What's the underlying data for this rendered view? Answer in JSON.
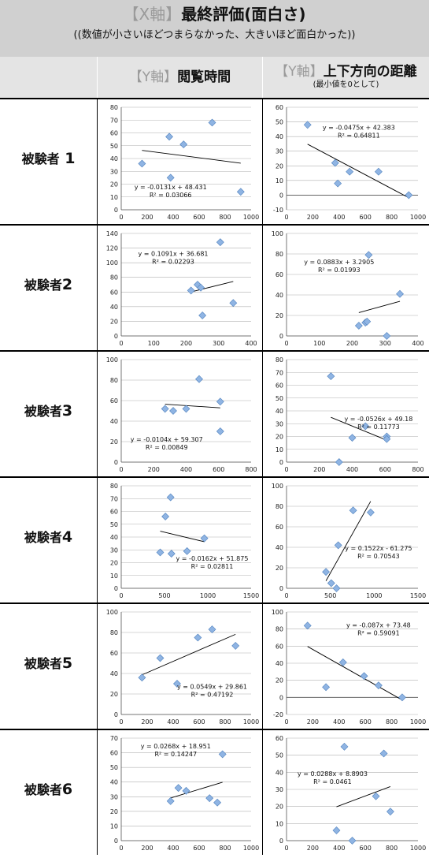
{
  "header": {
    "title_bracket": "【X軸】",
    "title_main": "最終評価(面白さ)",
    "subtitle": "((数値が小さいほどつまらなかった、大きいほど面白かった))"
  },
  "columns": [
    {
      "bracket": "【Y軸】",
      "main": "閲覧時間",
      "sub": ""
    },
    {
      "bracket": "【Y軸】",
      "main": "上下方向の距離",
      "sub": "(最小値を0として)"
    }
  ],
  "rows": [
    {
      "label_prefix": "被験者",
      "label_num": "1"
    },
    {
      "label_prefix": "被験者",
      "label_num": "2"
    },
    {
      "label_prefix": "被験者",
      "label_num": "3"
    },
    {
      "label_prefix": "被験者",
      "label_num": "4"
    },
    {
      "label_prefix": "被験者",
      "label_num": "5"
    },
    {
      "label_prefix": "被験者",
      "label_num": "6"
    }
  ],
  "colors": {
    "marker": "#8fb4e3",
    "marker_stroke": "#4f81bd",
    "grid": "#b0b0b0",
    "trend": "#000000"
  },
  "chart_data": [
    {
      "type": "scatter",
      "subject": "被験者 1",
      "panel": "閲覧時間",
      "xlim": [
        0,
        1000
      ],
      "ylim": [
        0,
        80
      ],
      "xticks": [
        0,
        200,
        400,
        600,
        800,
        1000
      ],
      "yticks": [
        0,
        10,
        20,
        30,
        40,
        50,
        60,
        70,
        80
      ],
      "points": [
        [
          160,
          36
        ],
        [
          370,
          57
        ],
        [
          380,
          25
        ],
        [
          480,
          51
        ],
        [
          700,
          68
        ],
        [
          920,
          14
        ]
      ],
      "trendline": {
        "slope": -0.0131,
        "intercept": 48.431
      },
      "equation": "y = -0.0131x + 48.431",
      "r2": "R² = 0.03066"
    },
    {
      "type": "scatter",
      "subject": "被験者 1",
      "panel": "上下方向の距離",
      "xlim": [
        0,
        1000
      ],
      "ylim": [
        -10,
        60
      ],
      "xticks": [
        0,
        200,
        400,
        600,
        800,
        1000
      ],
      "yticks": [
        -10,
        0,
        10,
        20,
        30,
        40,
        50,
        60
      ],
      "points": [
        [
          160,
          48
        ],
        [
          370,
          22
        ],
        [
          390,
          8
        ],
        [
          480,
          16
        ],
        [
          700,
          16
        ],
        [
          930,
          0
        ]
      ],
      "trendline": {
        "slope": -0.0475,
        "intercept": 42.383
      },
      "equation": "y = -0.0475x + 42.383",
      "r2": "R² = 0.64811"
    },
    {
      "type": "scatter",
      "subject": "被験者2",
      "panel": "閲覧時間",
      "xlim": [
        0,
        400
      ],
      "ylim": [
        0,
        140
      ],
      "xticks": [
        0,
        100,
        200,
        300,
        400
      ],
      "yticks": [
        0,
        20,
        40,
        60,
        80,
        100,
        120,
        140
      ],
      "points": [
        [
          215,
          62
        ],
        [
          235,
          70
        ],
        [
          245,
          66
        ],
        [
          250,
          28
        ],
        [
          305,
          128
        ],
        [
          345,
          45
        ]
      ],
      "trendline": {
        "slope": 0.1091,
        "intercept": 36.681
      },
      "equation": "y = 0.1091x + 36.681",
      "r2": "R² = 0.02293"
    },
    {
      "type": "scatter",
      "subject": "被験者2",
      "panel": "上下方向の距離",
      "xlim": [
        0,
        400
      ],
      "ylim": [
        0,
        100
      ],
      "xticks": [
        0,
        100,
        200,
        300,
        400
      ],
      "yticks": [
        0,
        20,
        40,
        60,
        80,
        100
      ],
      "points": [
        [
          220,
          10
        ],
        [
          240,
          13
        ],
        [
          245,
          14
        ],
        [
          250,
          79
        ],
        [
          305,
          0
        ],
        [
          345,
          41
        ]
      ],
      "trendline": {
        "slope": 0.0883,
        "intercept": 3.2905
      },
      "equation": "y = 0.0883x + 3.2905",
      "r2": "R² = 0.01993"
    },
    {
      "type": "scatter",
      "subject": "被験者3",
      "panel": "閲覧時間",
      "xlim": [
        0,
        800
      ],
      "ylim": [
        0,
        100
      ],
      "xticks": [
        0,
        200,
        400,
        600,
        800
      ],
      "yticks": [
        0,
        20,
        40,
        60,
        80,
        100
      ],
      "points": [
        [
          270,
          52
        ],
        [
          320,
          50
        ],
        [
          400,
          52
        ],
        [
          480,
          81
        ],
        [
          610,
          59
        ],
        [
          610,
          30
        ]
      ],
      "trendline": {
        "slope": -0.0104,
        "intercept": 59.307
      },
      "equation": "y = -0.0104x + 59.307",
      "r2": "R² = 0.00849"
    },
    {
      "type": "scatter",
      "subject": "被験者3",
      "panel": "上下方向の距離",
      "xlim": [
        0,
        800
      ],
      "ylim": [
        0,
        80
      ],
      "xticks": [
        0,
        200,
        400,
        600,
        800
      ],
      "yticks": [
        0,
        10,
        20,
        30,
        40,
        50,
        60,
        70,
        80
      ],
      "points": [
        [
          270,
          67
        ],
        [
          320,
          0
        ],
        [
          400,
          19
        ],
        [
          480,
          28
        ],
        [
          610,
          20
        ],
        [
          610,
          18
        ]
      ],
      "trendline": {
        "slope": -0.0526,
        "intercept": 49.18
      },
      "equation": "y = -0.0526x + 49.18",
      "r2": "R² = 0.11773"
    },
    {
      "type": "scatter",
      "subject": "被験者4",
      "panel": "閲覧時間",
      "xlim": [
        0,
        1500
      ],
      "ylim": [
        0,
        80
      ],
      "xticks": [
        0,
        500,
        1000,
        1500
      ],
      "yticks": [
        0,
        10,
        20,
        30,
        40,
        50,
        60,
        70,
        80
      ],
      "points": [
        [
          450,
          28
        ],
        [
          510,
          56
        ],
        [
          570,
          71
        ],
        [
          580,
          27
        ],
        [
          760,
          29
        ],
        [
          960,
          39
        ]
      ],
      "trendline": {
        "slope": -0.0162,
        "intercept": 51.875
      },
      "equation": "y = -0.0162x + 51.875",
      "r2": "R² = 0.02811"
    },
    {
      "type": "scatter",
      "subject": "被験者4",
      "panel": "上下方向の距離",
      "xlim": [
        0,
        1500
      ],
      "ylim": [
        0,
        100
      ],
      "xticks": [
        0,
        500,
        1000,
        1500
      ],
      "yticks": [
        0,
        20,
        40,
        60,
        80,
        100
      ],
      "points": [
        [
          450,
          16
        ],
        [
          510,
          5
        ],
        [
          570,
          0
        ],
        [
          590,
          42
        ],
        [
          760,
          76
        ],
        [
          960,
          74
        ]
      ],
      "trendline": {
        "slope": 0.1522,
        "intercept": -61.275
      },
      "equation": "y = 0.1522x - 61.275",
      "r2": "R² = 0.70543"
    },
    {
      "type": "scatter",
      "subject": "被験者5",
      "panel": "閲覧時間",
      "xlim": [
        0,
        1000
      ],
      "ylim": [
        0,
        100
      ],
      "xticks": [
        0,
        200,
        400,
        600,
        800,
        1000
      ],
      "yticks": [
        0,
        20,
        40,
        60,
        80,
        100
      ],
      "points": [
        [
          160,
          36
        ],
        [
          300,
          55
        ],
        [
          430,
          30
        ],
        [
          590,
          75
        ],
        [
          700,
          83
        ],
        [
          880,
          67
        ]
      ],
      "trendline": {
        "slope": 0.0549,
        "intercept": 29.861
      },
      "equation": "y = 0.0549x + 29.861",
      "r2": "R² = 0.47192"
    },
    {
      "type": "scatter",
      "subject": "被験者5",
      "panel": "上下方向の距離",
      "xlim": [
        0,
        1000
      ],
      "ylim": [
        -20,
        100
      ],
      "xticks": [
        0,
        200,
        400,
        600,
        800,
        1000
      ],
      "yticks": [
        -20,
        0,
        20,
        40,
        60,
        80,
        100
      ],
      "points": [
        [
          160,
          84
        ],
        [
          300,
          12
        ],
        [
          430,
          41
        ],
        [
          590,
          25
        ],
        [
          700,
          14
        ],
        [
          880,
          0
        ]
      ],
      "trendline": {
        "slope": -0.087,
        "intercept": 73.48
      },
      "equation": "y = -0.087x + 73.48",
      "r2": "R² = 0.59091"
    },
    {
      "type": "scatter",
      "subject": "被験者6",
      "panel": "閲覧時間",
      "xlim": [
        0,
        1000
      ],
      "ylim": [
        0,
        70
      ],
      "xticks": [
        0,
        200,
        400,
        600,
        800,
        1000
      ],
      "yticks": [
        0,
        10,
        20,
        30,
        40,
        50,
        60,
        70
      ],
      "points": [
        [
          380,
          27
        ],
        [
          440,
          36
        ],
        [
          500,
          34
        ],
        [
          680,
          29
        ],
        [
          740,
          26
        ],
        [
          780,
          59
        ]
      ],
      "trendline": {
        "slope": 0.0268,
        "intercept": 18.951
      },
      "equation": "y = 0.0268x + 18.951",
      "r2": "R² = 0.14247"
    },
    {
      "type": "scatter",
      "subject": "被験者6",
      "panel": "上下方向の距離",
      "xlim": [
        0,
        1000
      ],
      "ylim": [
        0,
        60
      ],
      "xticks": [
        0,
        200,
        400,
        600,
        800,
        1000
      ],
      "yticks": [
        0,
        10,
        20,
        30,
        40,
        50,
        60
      ],
      "points": [
        [
          380,
          6
        ],
        [
          440,
          55
        ],
        [
          500,
          0
        ],
        [
          680,
          26
        ],
        [
          740,
          51
        ],
        [
          790,
          17
        ]
      ],
      "trendline": {
        "slope": 0.0288,
        "intercept": 8.8903
      },
      "equation": "y = 0.0288x + 8.8903",
      "r2": "R² = 0.0461"
    }
  ]
}
